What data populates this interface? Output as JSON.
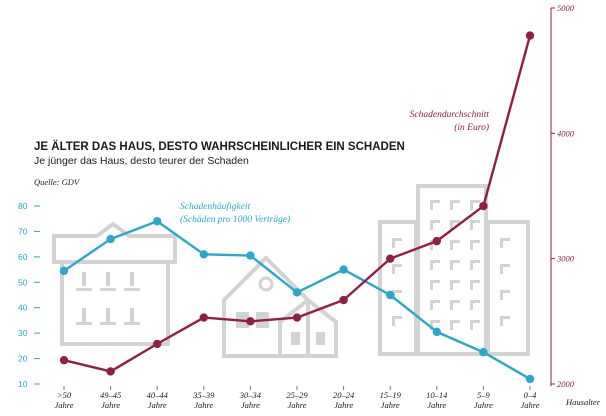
{
  "title": "JE ÄLTER DAS HAUS, DESTO WAHRSCHEINLICHER EIN SCHADEN",
  "subtitle": "Je jünger das Haus, desto teurer der Schaden",
  "source": "Quelle: GDV",
  "x_axis_label": "Hausalter",
  "colors": {
    "blue": "#2aa7c9",
    "red": "#8e1f46",
    "building": "#d3d3d3"
  },
  "chart_data": {
    "type": "line",
    "categories": [
      [
        ">50",
        "Jahre"
      ],
      [
        "49–45",
        "Jahre"
      ],
      [
        "40–44",
        "Jahre"
      ],
      [
        "35–39",
        "Jahre"
      ],
      [
        "30–34",
        "Jahre"
      ],
      [
        "25–29",
        "Jahre"
      ],
      [
        "20–24",
        "Jahre"
      ],
      [
        "15–19",
        "Jahre"
      ],
      [
        "10–14",
        "Jahre"
      ],
      [
        "5–9",
        "Jahre"
      ],
      [
        "0–4",
        "Jahre"
      ]
    ],
    "y_left": {
      "ticks": [
        10,
        20,
        30,
        40,
        50,
        60,
        70,
        80
      ],
      "ylim": [
        10,
        80
      ]
    },
    "y_right": {
      "ticks": [
        2000,
        3000,
        4000,
        5000
      ],
      "ylim": [
        2000,
        5000
      ]
    },
    "series": [
      {
        "name": [
          "Schadenhäufigkeit",
          "(Schäden pro 1000 Verträge)"
        ],
        "axis": "left",
        "color": "#2aa7c9",
        "values": [
          54.5,
          67,
          74,
          61,
          60.5,
          46,
          55,
          45,
          30.5,
          22.5,
          12
        ]
      },
      {
        "name": [
          "Schadendurchschnitt",
          "(in Euro)"
        ],
        "axis": "right",
        "color": "#8e1f46",
        "values": [
          2190,
          2100,
          2320,
          2530,
          2500,
          2530,
          2670,
          3000,
          3140,
          3420,
          4780
        ]
      }
    ]
  }
}
